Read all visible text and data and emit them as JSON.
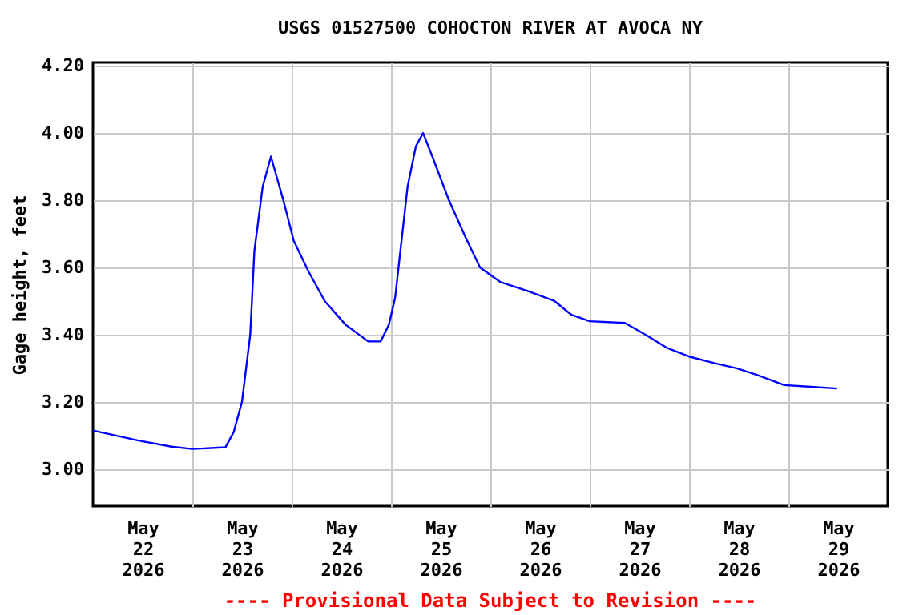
{
  "chart_data": {
    "type": "line",
    "title": "USGS 01527500 COHOCTON RIVER AT AVOCA NY",
    "ylabel": "Gage height, feet",
    "annotations": [
      "---- Provisional Data Subject to Revision ----"
    ],
    "xlim": [
      "2026-05-22T00:00",
      "2026-05-30T00:00"
    ],
    "xticks": [
      {
        "value": "2026-05-22T12:00",
        "label": "May 22 2026"
      },
      {
        "value": "2026-05-23T00:00",
        "label": null
      },
      {
        "value": "2026-05-23T12:00",
        "label": "May 23 2026"
      },
      {
        "value": "2026-05-24T00:00",
        "label": null
      },
      {
        "value": "2026-05-24T12:00",
        "label": "May 24 2026"
      },
      {
        "value": "2026-05-25T00:00",
        "label": null
      },
      {
        "value": "2026-05-25T12:00",
        "label": "May 25 2026"
      },
      {
        "value": "2026-05-26T00:00",
        "label": null
      },
      {
        "value": "2026-05-26T12:00",
        "label": "May 26 2026"
      },
      {
        "value": "2026-05-27T00:00",
        "label": null
      },
      {
        "value": "2026-05-27T12:00",
        "label": "May 27 2026"
      },
      {
        "value": "2026-05-28T00:00",
        "label": null
      },
      {
        "value": "2026-05-28T12:00",
        "label": "May 28 2026"
      },
      {
        "value": "2026-05-29T00:00",
        "label": null
      },
      {
        "value": "2026-05-29T12:00",
        "label": "May 29 2026"
      }
    ],
    "ylim": [
      2.89,
      4.21
    ],
    "yticks": [
      {
        "value": 3,
        "label": "3.00"
      },
      {
        "value": 3.2,
        "label": "3.20"
      },
      {
        "value": 3.4,
        "label": "3.40"
      },
      {
        "value": 3.6,
        "label": "3.60"
      },
      {
        "value": 3.8,
        "label": "3.80"
      },
      {
        "value": 4,
        "label": "4.00"
      },
      {
        "value": 4.2,
        "label": "4.20"
      }
    ],
    "grid": true,
    "line_style": "solid",
    "x": [
      "2026-05-22T00:00",
      "2026-05-22T11:00",
      "2026-05-22T19:00",
      "2026-05-23T00:00",
      "2026-05-23T08:00",
      "2026-05-23T10:00",
      "2026-05-23T12:00",
      "2026-05-23T14:00",
      "2026-05-23T15:00",
      "2026-05-23T17:00",
      "2026-05-23T19:00",
      "2026-05-23T22:00",
      "2026-05-24T00:30",
      "2026-05-24T04:00",
      "2026-05-24T08:00",
      "2026-05-24T13:00",
      "2026-05-24T18:30",
      "2026-05-24T21:30",
      "2026-05-24T23:30",
      "2026-05-25T01:00",
      "2026-05-25T02:00",
      "2026-05-25T04:00",
      "2026-05-25T06:00",
      "2026-05-25T07:45",
      "2026-05-25T10:00",
      "2026-05-25T14:00",
      "2026-05-25T18:00",
      "2026-05-25T21:30",
      "2026-05-26T02:30",
      "2026-05-26T09:00",
      "2026-05-26T15:30",
      "2026-05-26T19:30",
      "2026-05-27T00:00",
      "2026-05-27T08:30",
      "2026-05-27T13:30",
      "2026-05-27T18:45",
      "2026-05-28T00:00",
      "2026-05-28T06:15",
      "2026-05-28T11:30",
      "2026-05-28T16:30",
      "2026-05-28T23:00",
      "2026-05-29T05:30",
      "2026-05-29T11:45"
    ],
    "series": [
      {
        "color": "#0000ff",
        "values": [
          3.115,
          3.085,
          3.067,
          3.06,
          3.065,
          3.11,
          3.2,
          3.4,
          3.65,
          3.84,
          3.93,
          3.8,
          3.68,
          3.59,
          3.5,
          3.43,
          3.38,
          3.38,
          3.43,
          3.51,
          3.62,
          3.84,
          3.96,
          4.0,
          3.93,
          3.8,
          3.69,
          3.6,
          3.556,
          3.53,
          3.5,
          3.46,
          3.44,
          3.435,
          3.4,
          3.36,
          3.335,
          3.315,
          3.3,
          3.28,
          3.25,
          3.245,
          3.24
        ]
      }
    ]
  }
}
